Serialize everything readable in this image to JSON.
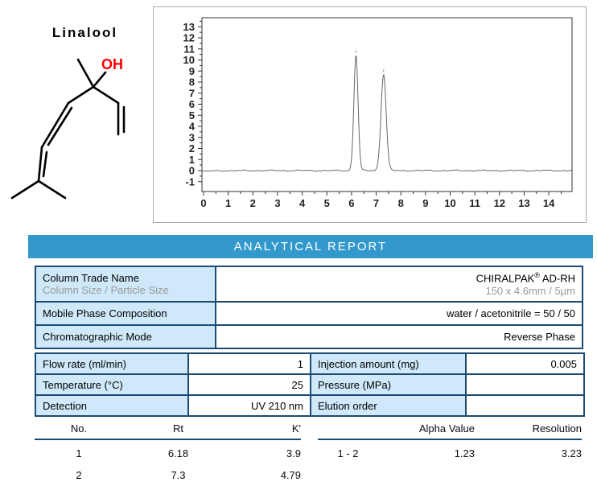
{
  "molecule": {
    "name": "Linalool",
    "hydroxyl_label": "OH",
    "hydroxyl_color": "#ff0000"
  },
  "report": {
    "title": "ANALYTICAL REPORT",
    "banner_color": "#3399cc"
  },
  "conditions_table": {
    "rows": [
      {
        "label": "Column Trade Name",
        "sublabel": "Column Size / Particle Size",
        "value_name": "CHIRALPAK",
        "value_reg": "®",
        "value_suffix": " AD-RH",
        "subvalue": "150 x 4.6mm / 5µm"
      },
      {
        "label": "Mobile Phase Composition",
        "value": "water / acetonitrile = 50 / 50"
      },
      {
        "label": "Chromatographic Mode",
        "value": "Reverse Phase"
      }
    ]
  },
  "params_table": {
    "rows": [
      [
        {
          "label": "Flow rate (ml/min)",
          "value": "1"
        },
        {
          "label": "Injection amount (mg)",
          "value": "0.005"
        }
      ],
      [
        {
          "label": "Temperature (°C)",
          "value": "25"
        },
        {
          "label": "Pressure (MPa)",
          "value": ""
        }
      ],
      [
        {
          "label": "Detection",
          "value": "UV 210 nm"
        },
        {
          "label": "Elution order",
          "value": ""
        }
      ]
    ]
  },
  "results": {
    "left": {
      "headers": [
        "No.",
        "Rt",
        "K'"
      ],
      "rows": [
        [
          "1",
          "6.18",
          "3.9"
        ],
        [
          "2",
          "7.3",
          "4.79"
        ]
      ]
    },
    "right": {
      "headers": [
        "",
        "Alpha Value",
        "Resolution"
      ],
      "rows": [
        [
          "1 - 2",
          "1.23",
          "3.23"
        ]
      ]
    }
  },
  "chart_data": {
    "type": "line",
    "title": "",
    "xlabel": "",
    "ylabel": "",
    "x_range": [
      -0.07,
      14.94
    ],
    "y_range": [
      -1.9,
      13.8
    ],
    "x_ticks": [
      0,
      1,
      2,
      3,
      4,
      5,
      6,
      7,
      8,
      9,
      10,
      11,
      12,
      13,
      14
    ],
    "y_ticks": [
      -1,
      0,
      1,
      2,
      3,
      4,
      5,
      6,
      7,
      8,
      9,
      10,
      11,
      12,
      13
    ],
    "grid": false,
    "legend": false,
    "baseline": 0,
    "peaks": [
      {
        "no": 1,
        "rt": 6.18,
        "height": 10.45,
        "sigma": 0.085
      },
      {
        "no": 2,
        "rt": 7.3,
        "height": 8.7,
        "sigma": 0.105
      }
    ],
    "trace_color": "#666666",
    "axis_color": "#333333"
  }
}
